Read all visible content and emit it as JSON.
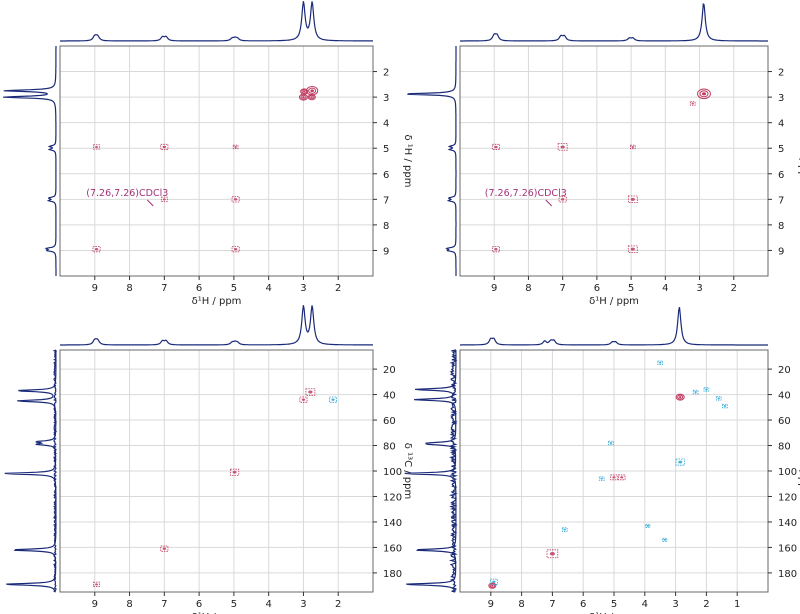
{
  "colors": {
    "positive": "#c0395e",
    "negative": "#2aa6d6",
    "projection": "#1a2a78",
    "annotation": "#a2327a"
  },
  "chart_data": [
    {
      "type": "scatter",
      "xlabel": "δ¹H / ppm",
      "ylabel": "δ ¹H / ppm",
      "xlim": [
        10,
        1
      ],
      "ylim": [
        1,
        10
      ],
      "x_ticks": [
        9,
        8,
        7,
        6,
        5,
        4,
        3,
        2
      ],
      "y_ticks": [
        2,
        3,
        4,
        5,
        6,
        7,
        8,
        9
      ],
      "top_projection": [
        {
          "x": 9.0,
          "h": 0.12
        },
        {
          "x": 8.92,
          "h": 0.12
        },
        {
          "x": 7.05,
          "h": 0.1
        },
        {
          "x": 6.95,
          "h": 0.1
        },
        {
          "x": 5.05,
          "h": 0.06
        },
        {
          "x": 4.97,
          "h": 0.06
        },
        {
          "x": 4.9,
          "h": 0.06
        },
        {
          "x": 3.0,
          "h": 1.0
        },
        {
          "x": 2.75,
          "h": 1.0
        }
      ],
      "left_projection": [
        {
          "y": 2.75,
          "h": 1.0
        },
        {
          "y": 3.0,
          "h": 1.0
        },
        {
          "y": 4.93,
          "h": 0.12
        },
        {
          "y": 5.05,
          "h": 0.12
        },
        {
          "y": 6.95,
          "h": 0.13
        },
        {
          "y": 7.05,
          "h": 0.13
        },
        {
          "y": 8.92,
          "h": 0.16
        },
        {
          "y": 9.0,
          "h": 0.16
        }
      ],
      "peaks": [
        {
          "x": 3.0,
          "y": 3.0,
          "size": 2.5
        },
        {
          "x": 2.98,
          "y": 2.78,
          "size": 2.2
        },
        {
          "x": 2.76,
          "y": 3.0,
          "size": 2.2
        },
        {
          "x": 2.75,
          "y": 2.75,
          "size": 3.5
        },
        {
          "x": 8.95,
          "y": 4.95,
          "size": 1
        },
        {
          "x": 7.0,
          "y": 4.95,
          "size": 1.2
        },
        {
          "x": 4.95,
          "y": 4.95,
          "size": 0.8
        },
        {
          "x": 7.0,
          "y": 7.0,
          "size": 1
        },
        {
          "x": 4.95,
          "y": 7.0,
          "size": 1.2
        },
        {
          "x": 8.95,
          "y": 8.95,
          "size": 1.2
        },
        {
          "x": 4.95,
          "y": 8.95,
          "size": 1.2
        }
      ],
      "annotation": {
        "text": "(7.26,7.26)CDCl3",
        "x": 7.26,
        "y": 7.26
      }
    },
    {
      "type": "scatter",
      "xlabel": "δ¹H / ppm",
      "ylabel": "δ ¹H / ppm",
      "xlim": [
        10,
        1
      ],
      "ylim": [
        1,
        10
      ],
      "x_ticks": [
        9,
        8,
        7,
        6,
        5,
        4,
        3,
        2
      ],
      "y_ticks": [
        2,
        3,
        4,
        5,
        6,
        7,
        8,
        9
      ],
      "top_projection": [
        {
          "x": 9.0,
          "h": 0.14
        },
        {
          "x": 8.92,
          "h": 0.14
        },
        {
          "x": 7.05,
          "h": 0.12
        },
        {
          "x": 6.95,
          "h": 0.12
        },
        {
          "x": 5.05,
          "h": 0.07
        },
        {
          "x": 4.95,
          "h": 0.07
        },
        {
          "x": 2.88,
          "h": 1.0
        }
      ],
      "left_projection": [
        {
          "y": 2.88,
          "h": 1.0
        },
        {
          "y": 4.93,
          "h": 0.12
        },
        {
          "y": 5.05,
          "h": 0.12
        },
        {
          "y": 6.95,
          "h": 0.13
        },
        {
          "y": 7.05,
          "h": 0.13
        },
        {
          "y": 8.92,
          "h": 0.15
        },
        {
          "y": 9.0,
          "h": 0.15
        }
      ],
      "peaks": [
        {
          "x": 2.87,
          "y": 2.87,
          "size": 4
        },
        {
          "x": 3.2,
          "y": 3.25,
          "size": 0.8
        },
        {
          "x": 8.95,
          "y": 4.95,
          "size": 1.2
        },
        {
          "x": 7.0,
          "y": 4.95,
          "size": 1.5
        },
        {
          "x": 4.95,
          "y": 4.95,
          "size": 0.8
        },
        {
          "x": 7.0,
          "y": 7.0,
          "size": 1.2
        },
        {
          "x": 4.95,
          "y": 7.0,
          "size": 1.5
        },
        {
          "x": 8.95,
          "y": 8.95,
          "size": 1.2
        },
        {
          "x": 4.95,
          "y": 8.95,
          "size": 1.5
        }
      ],
      "annotation": {
        "text": "(7.26,7.26)CDCl3",
        "x": 7.26,
        "y": 7.26
      }
    },
    {
      "type": "scatter",
      "xlabel": "δ¹H / ppm",
      "ylabel": "δ ¹³C / ppm",
      "xlim": [
        10,
        1
      ],
      "ylim": [
        5,
        195
      ],
      "x_ticks": [
        9,
        8,
        7,
        6,
        5,
        4,
        3,
        2
      ],
      "y_ticks": [
        20,
        40,
        60,
        80,
        100,
        120,
        140,
        160,
        180
      ],
      "top_projection": [
        {
          "x": 9.0,
          "h": 0.12
        },
        {
          "x": 8.92,
          "h": 0.12
        },
        {
          "x": 7.05,
          "h": 0.1
        },
        {
          "x": 6.95,
          "h": 0.1
        },
        {
          "x": 5.05,
          "h": 0.06
        },
        {
          "x": 4.97,
          "h": 0.06
        },
        {
          "x": 4.9,
          "h": 0.06
        },
        {
          "x": 3.0,
          "h": 1.0
        },
        {
          "x": 2.75,
          "h": 1.0
        }
      ],
      "left_projection": [
        {
          "y": 37,
          "h": 0.75
        },
        {
          "y": 45,
          "h": 0.75
        },
        {
          "y": 77,
          "h": 0.35
        },
        {
          "y": 79,
          "h": 0.35
        },
        {
          "y": 102,
          "h": 1.0
        },
        {
          "y": 162,
          "h": 0.85
        },
        {
          "y": 189,
          "h": 1.0
        }
      ],
      "peaks": [
        {
          "x": 2.8,
          "y": 38,
          "size": 1.5,
          "sign": "pos"
        },
        {
          "x": 3.0,
          "y": 44,
          "size": 1.2,
          "sign": "pos"
        },
        {
          "x": 2.15,
          "y": 44,
          "size": 1.2,
          "sign": "neg"
        },
        {
          "x": 4.98,
          "y": 101,
          "size": 1.4,
          "sign": "pos"
        },
        {
          "x": 7.0,
          "y": 161,
          "size": 1.2,
          "sign": "pos"
        },
        {
          "x": 8.95,
          "y": 189,
          "size": 1.0,
          "sign": "pos"
        }
      ]
    },
    {
      "type": "scatter",
      "xlabel": "δ¹H / ppm",
      "ylabel": "δ ¹³C / ppm",
      "xlim": [
        10,
        0
      ],
      "ylim": [
        5,
        195
      ],
      "x_ticks": [
        9,
        8,
        7,
        6,
        5,
        4,
        3,
        2,
        1
      ],
      "y_ticks": [
        20,
        40,
        60,
        80,
        100,
        120,
        140,
        160,
        180
      ],
      "top_projection": [
        {
          "x": 9.0,
          "h": 0.14
        },
        {
          "x": 8.9,
          "h": 0.14
        },
        {
          "x": 7.25,
          "h": 0.1
        },
        {
          "x": 7.05,
          "h": 0.1
        },
        {
          "x": 6.95,
          "h": 0.1
        },
        {
          "x": 5.05,
          "h": 0.07
        },
        {
          "x": 4.95,
          "h": 0.07
        },
        {
          "x": 2.88,
          "h": 1.0
        }
      ],
      "left_projection": [
        {
          "y": 36,
          "h": 0.8
        },
        {
          "y": 44,
          "h": 0.8
        },
        {
          "y": 78,
          "h": 0.4
        },
        {
          "y": 79,
          "h": 0.4
        },
        {
          "y": 102,
          "h": 1.0
        },
        {
          "y": 162,
          "h": 0.8
        },
        {
          "y": 189,
          "h": 1.0
        }
      ],
      "peaks": [
        {
          "x": 3.5,
          "y": 15,
          "size": 0.8,
          "sign": "neg"
        },
        {
          "x": 2.85,
          "y": 42,
          "size": 2.5,
          "sign": "pos"
        },
        {
          "x": 2.35,
          "y": 38,
          "size": 0.8,
          "sign": "neg"
        },
        {
          "x": 2.0,
          "y": 36,
          "size": 0.8,
          "sign": "neg"
        },
        {
          "x": 1.6,
          "y": 43,
          "size": 0.8,
          "sign": "neg"
        },
        {
          "x": 1.4,
          "y": 49,
          "size": 0.8,
          "sign": "neg"
        },
        {
          "x": 5.1,
          "y": 78,
          "size": 0.8,
          "sign": "neg"
        },
        {
          "x": 2.85,
          "y": 93,
          "size": 1.4,
          "sign": "neg"
        },
        {
          "x": 5.4,
          "y": 106,
          "size": 0.8,
          "sign": "neg"
        },
        {
          "x": 5.0,
          "y": 105,
          "size": 1.1,
          "sign": "pos"
        },
        {
          "x": 4.75,
          "y": 105,
          "size": 1.1,
          "sign": "pos"
        },
        {
          "x": 3.9,
          "y": 143,
          "size": 0.7,
          "sign": "neg"
        },
        {
          "x": 3.35,
          "y": 154,
          "size": 0.7,
          "sign": "neg"
        },
        {
          "x": 6.6,
          "y": 146,
          "size": 0.8,
          "sign": "neg"
        },
        {
          "x": 7.0,
          "y": 165,
          "size": 1.8,
          "sign": "pos"
        },
        {
          "x": 8.95,
          "y": 190,
          "size": 2.2,
          "sign": "pos"
        },
        {
          "x": 8.9,
          "y": 187,
          "size": 1.2,
          "sign": "neg"
        }
      ]
    }
  ]
}
